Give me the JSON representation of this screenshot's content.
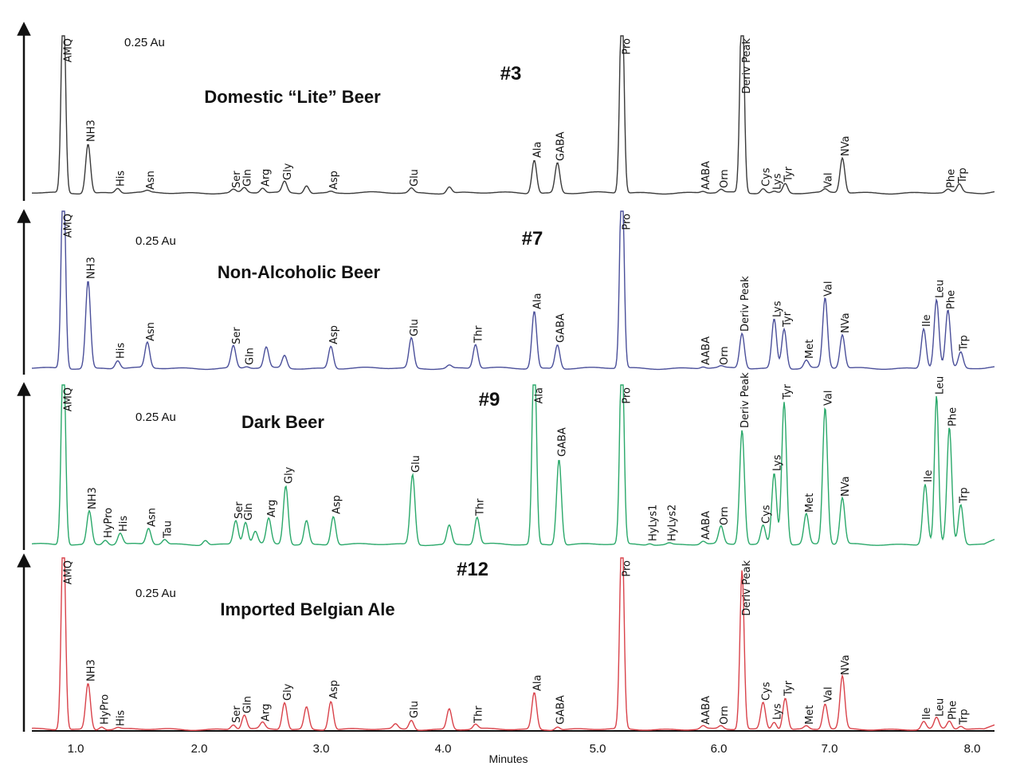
{
  "chart_data": {
    "type": "line",
    "subtype": "stacked chromatograms",
    "xlabel": "Minutes",
    "xticks": [
      "1.0",
      "2.0",
      "3.0",
      "4.0",
      "5.0",
      "6.0",
      "7.0",
      "8.0"
    ],
    "xlim": [
      0.75,
      8.2
    ],
    "y_units_note": "intensity as fraction of panel full scale; values > 1 are off-scale",
    "grid": false,
    "panels": [
      {
        "title": "Domestic “Lite” Beer",
        "number": "#3",
        "scale": "0.25 Au",
        "color": "#3a3a3a",
        "peaks": [
          {
            "label": "AMQ",
            "rt": 0.9,
            "intensity": 1.3
          },
          {
            "label": "NH3",
            "rt": 1.1,
            "intensity": 0.31
          },
          {
            "label": "His",
            "rt": 1.34,
            "intensity": 0.03
          },
          {
            "label": "Asn",
            "rt": 1.58,
            "intensity": 0.01
          },
          {
            "label": "Ser",
            "rt": 2.28,
            "intensity": 0.02
          },
          {
            "label": "Gln",
            "rt": 2.37,
            "intensity": 0.03
          },
          {
            "label": "Arg",
            "rt": 2.52,
            "intensity": 0.03
          },
          {
            "label": "Gly",
            "rt": 2.7,
            "intensity": 0.07
          },
          {
            "label": "",
            "rt": 2.88,
            "intensity": 0.05
          },
          {
            "label": "Asp",
            "rt": 3.08,
            "intensity": 0.01
          },
          {
            "label": "Glu",
            "rt": 3.74,
            "intensity": 0.03
          },
          {
            "label": "",
            "rt": 4.04,
            "intensity": 0.04
          },
          {
            "label": "Ala",
            "rt": 4.59,
            "intensity": 0.21
          },
          {
            "label": "GABA",
            "rt": 4.74,
            "intensity": 0.19
          },
          {
            "label": "Pro",
            "rt": 5.2,
            "intensity": 1.3
          },
          {
            "label": "AABA",
            "rt": 5.87,
            "intensity": 0.01
          },
          {
            "label": "Orn",
            "rt": 6.02,
            "intensity": 0.02
          },
          {
            "label": "Deriv Peak",
            "rt": 6.21,
            "intensity": 1.3
          },
          {
            "label": "Cys",
            "rt": 6.4,
            "intensity": 0.03
          },
          {
            "label": "Lys",
            "rt": 6.5,
            "intensity": 0.01
          },
          {
            "label": "Tyr",
            "rt": 6.6,
            "intensity": 0.06
          },
          {
            "label": "Val",
            "rt": 6.96,
            "intensity": 0.02
          },
          {
            "label": "NVa",
            "rt": 7.09,
            "intensity": 0.22
          },
          {
            "label": "Phe",
            "rt": 7.83,
            "intensity": 0.02
          },
          {
            "label": "Trp",
            "rt": 7.91,
            "intensity": 0.05
          }
        ]
      },
      {
        "title": "Non-Alcoholic Beer",
        "number": "#7",
        "scale": "0.25 Au",
        "color": "#4a4f9a",
        "peaks": [
          {
            "label": "AMQ",
            "rt": 0.9,
            "intensity": 1.3
          },
          {
            "label": "NH3",
            "rt": 1.1,
            "intensity": 0.55
          },
          {
            "label": "His",
            "rt": 1.34,
            "intensity": 0.05
          },
          {
            "label": "Asn",
            "rt": 1.58,
            "intensity": 0.16
          },
          {
            "label": "Ser",
            "rt": 2.28,
            "intensity": 0.14
          },
          {
            "label": "Gln",
            "rt": 2.39,
            "intensity": 0.01
          },
          {
            "label": "",
            "rt": 2.55,
            "intensity": 0.13
          },
          {
            "label": "",
            "rt": 2.7,
            "intensity": 0.08
          },
          {
            "label": "Asp",
            "rt": 3.08,
            "intensity": 0.14
          },
          {
            "label": "Glu",
            "rt": 3.74,
            "intensity": 0.19
          },
          {
            "label": "",
            "rt": 4.04,
            "intensity": 0.02
          },
          {
            "label": "Thr",
            "rt": 4.21,
            "intensity": 0.15
          },
          {
            "label": "Ala",
            "rt": 4.59,
            "intensity": 0.36
          },
          {
            "label": "GABA",
            "rt": 4.74,
            "intensity": 0.15
          },
          {
            "label": "Pro",
            "rt": 5.2,
            "intensity": 1.3
          },
          {
            "label": "AABA",
            "rt": 5.87,
            "intensity": 0.01
          },
          {
            "label": "Orn",
            "rt": 6.02,
            "intensity": 0.01
          },
          {
            "label": "Deriv Peak",
            "rt": 6.21,
            "intensity": 0.22
          },
          {
            "label": "Lys",
            "rt": 6.5,
            "intensity": 0.31
          },
          {
            "label": "Tyr",
            "rt": 6.59,
            "intensity": 0.25
          },
          {
            "label": "Met",
            "rt": 6.79,
            "intensity": 0.05
          },
          {
            "label": "Val",
            "rt": 6.96,
            "intensity": 0.44
          },
          {
            "label": "NVa",
            "rt": 7.09,
            "intensity": 0.21
          },
          {
            "label": "Ile",
            "rt": 7.66,
            "intensity": 0.25
          },
          {
            "label": "Leu",
            "rt": 7.75,
            "intensity": 0.43
          },
          {
            "label": "Phe",
            "rt": 7.83,
            "intensity": 0.36
          },
          {
            "label": "Trp",
            "rt": 7.92,
            "intensity": 0.1
          }
        ]
      },
      {
        "title": "Dark Beer",
        "number": "#9",
        "scale": "0.25 Au",
        "color": "#2aa86a",
        "peaks": [
          {
            "label": "AMQ",
            "rt": 0.9,
            "intensity": 1.3
          },
          {
            "label": "NH3",
            "rt": 1.11,
            "intensity": 0.21
          },
          {
            "label": "HyPro",
            "rt": 1.24,
            "intensity": 0.03
          },
          {
            "label": "His",
            "rt": 1.36,
            "intensity": 0.07
          },
          {
            "label": "Asn",
            "rt": 1.59,
            "intensity": 0.1
          },
          {
            "label": "Tau",
            "rt": 1.72,
            "intensity": 0.03
          },
          {
            "label": "",
            "rt": 2.05,
            "intensity": 0.03
          },
          {
            "label": "Ser",
            "rt": 2.3,
            "intensity": 0.15
          },
          {
            "label": "Gln",
            "rt": 2.38,
            "intensity": 0.14
          },
          {
            "label": "",
            "rt": 2.46,
            "intensity": 0.08
          },
          {
            "label": "Arg",
            "rt": 2.57,
            "intensity": 0.16
          },
          {
            "label": "Gly",
            "rt": 2.71,
            "intensity": 0.37
          },
          {
            "label": "",
            "rt": 2.88,
            "intensity": 0.15
          },
          {
            "label": "Asp",
            "rt": 3.1,
            "intensity": 0.18
          },
          {
            "label": "Glu",
            "rt": 3.75,
            "intensity": 0.44
          },
          {
            "label": "",
            "rt": 4.04,
            "intensity": 0.12
          },
          {
            "label": "Thr",
            "rt": 4.22,
            "intensity": 0.17
          },
          {
            "label": "Ala",
            "rt": 4.59,
            "intensity": 1.3
          },
          {
            "label": "GABA",
            "rt": 4.75,
            "intensity": 0.54
          },
          {
            "label": "Pro",
            "rt": 5.2,
            "intensity": 1.3
          },
          {
            "label": "HyLys1",
            "rt": 5.43,
            "intensity": 0.01
          },
          {
            "label": "HyLys2",
            "rt": 5.59,
            "intensity": 0.01
          },
          {
            "label": "AABA",
            "rt": 5.87,
            "intensity": 0.02
          },
          {
            "label": "Orn",
            "rt": 6.02,
            "intensity": 0.11
          },
          {
            "label": "Deriv Peak",
            "rt": 6.21,
            "intensity": 0.72
          },
          {
            "label": "Cys",
            "rt": 6.4,
            "intensity": 0.12
          },
          {
            "label": "Lys",
            "rt": 6.5,
            "intensity": 0.45
          },
          {
            "label": "Tyr",
            "rt": 6.59,
            "intensity": 0.9
          },
          {
            "label": "Met",
            "rt": 6.79,
            "intensity": 0.19
          },
          {
            "label": "Val",
            "rt": 6.96,
            "intensity": 0.86
          },
          {
            "label": "NVa",
            "rt": 7.09,
            "intensity": 0.29
          },
          {
            "label": "Ile",
            "rt": 7.67,
            "intensity": 0.38
          },
          {
            "label": "Leu",
            "rt": 7.75,
            "intensity": 0.93
          },
          {
            "label": "Phe",
            "rt": 7.84,
            "intensity": 0.73
          },
          {
            "label": "Trp",
            "rt": 7.92,
            "intensity": 0.25
          }
        ]
      },
      {
        "title": "Imported Belgian Ale",
        "number": "#12",
        "scale": "0.25 Au",
        "color": "#d9424a",
        "peaks": [
          {
            "label": "AMQ",
            "rt": 0.9,
            "intensity": 1.3
          },
          {
            "label": "NH3",
            "rt": 1.1,
            "intensity": 0.29
          },
          {
            "label": "HyPro",
            "rt": 1.21,
            "intensity": 0.02
          },
          {
            "label": "His",
            "rt": 1.34,
            "intensity": 0.01
          },
          {
            "label": "Ser",
            "rt": 2.28,
            "intensity": 0.03
          },
          {
            "label": "Gln",
            "rt": 2.37,
            "intensity": 0.09
          },
          {
            "label": "Arg",
            "rt": 2.52,
            "intensity": 0.04
          },
          {
            "label": "Gly",
            "rt": 2.7,
            "intensity": 0.17
          },
          {
            "label": "",
            "rt": 2.88,
            "intensity": 0.14
          },
          {
            "label": "Asp",
            "rt": 3.08,
            "intensity": 0.18
          },
          {
            "label": "",
            "rt": 3.61,
            "intensity": 0.03
          },
          {
            "label": "Glu",
            "rt": 3.74,
            "intensity": 0.06
          },
          {
            "label": "",
            "rt": 4.04,
            "intensity": 0.13
          },
          {
            "label": "Thr",
            "rt": 4.21,
            "intensity": 0.03
          },
          {
            "label": "Ala",
            "rt": 4.59,
            "intensity": 0.23
          },
          {
            "label": "GABA",
            "rt": 4.74,
            "intensity": 0.02
          },
          {
            "label": "Pro",
            "rt": 5.2,
            "intensity": 1.3
          },
          {
            "label": "AABA",
            "rt": 5.87,
            "intensity": 0.02
          },
          {
            "label": "Orn",
            "rt": 6.02,
            "intensity": 0.02
          },
          {
            "label": "Deriv Peak",
            "rt": 6.21,
            "intensity": 1.0
          },
          {
            "label": "Cys",
            "rt": 6.4,
            "intensity": 0.17
          },
          {
            "label": "Lys",
            "rt": 6.5,
            "intensity": 0.05
          },
          {
            "label": "Tyr",
            "rt": 6.6,
            "intensity": 0.2
          },
          {
            "label": "Met",
            "rt": 6.79,
            "intensity": 0.02
          },
          {
            "label": "Val",
            "rt": 6.96,
            "intensity": 0.16
          },
          {
            "label": "NVa",
            "rt": 7.09,
            "intensity": 0.33
          },
          {
            "label": "Ile",
            "rt": 7.66,
            "intensity": 0.05
          },
          {
            "label": "Leu",
            "rt": 7.75,
            "intensity": 0.07
          },
          {
            "label": "Phe",
            "rt": 7.84,
            "intensity": 0.05
          },
          {
            "label": "Trp",
            "rt": 7.92,
            "intensity": 0.02
          }
        ]
      }
    ]
  }
}
